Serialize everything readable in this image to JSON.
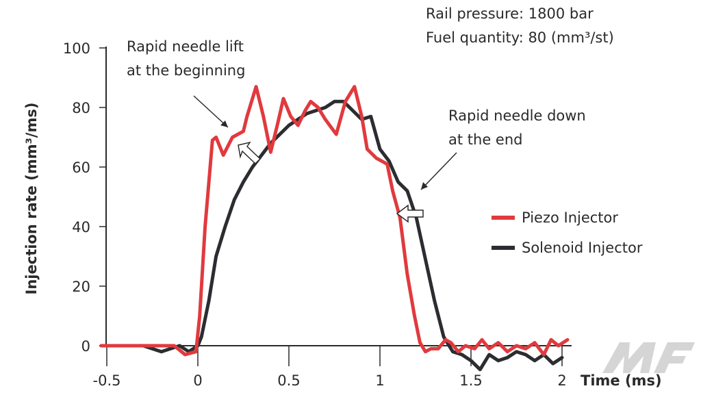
{
  "chart_data": {
    "type": "line",
    "title": "",
    "info_lines": [
      "Rail pressure: 1800 bar",
      "Fuel quantity: 80 (mm³/st)"
    ],
    "xlabel": "Time (ms)",
    "ylabel": "Injection rate (mm³/ms)",
    "xlim": [
      -0.55,
      2.05
    ],
    "ylim": [
      0,
      100
    ],
    "xticks": [
      -0.5,
      0,
      0.5,
      1,
      1.5,
      2
    ],
    "xtick_labels": [
      "-0.5",
      "0",
      "0.5",
      "1",
      "1.5",
      "2"
    ],
    "yticks": [
      0,
      20,
      40,
      60,
      80,
      100
    ],
    "ytick_labels": [
      "0",
      "20",
      "40",
      "60",
      "80",
      "100"
    ],
    "grid": false,
    "legend": {
      "placement": "right",
      "entries": [
        "Piezo Injector",
        "Solenoid Injector"
      ]
    },
    "annotations": {
      "start": [
        "Rapid needle lift",
        "at the beginning"
      ],
      "end": [
        "Rapid needle down",
        "at the end"
      ]
    },
    "series": [
      {
        "name": "Piezo Injector",
        "color": "#e03a3e",
        "x": [
          -0.53,
          -0.2,
          -0.13,
          -0.07,
          -0.01,
          0.01,
          0.04,
          0.08,
          0.1,
          0.14,
          0.19,
          0.25,
          0.27,
          0.32,
          0.36,
          0.4,
          0.44,
          0.47,
          0.51,
          0.55,
          0.59,
          0.62,
          0.66,
          0.7,
          0.76,
          0.81,
          0.86,
          0.9,
          0.93,
          0.98,
          1.04,
          1.07,
          1.11,
          1.15,
          1.19,
          1.22,
          1.25,
          1.28,
          1.32,
          1.36,
          1.39,
          1.43,
          1.47,
          1.52,
          1.56,
          1.6,
          1.65,
          1.7,
          1.75,
          1.8,
          1.85,
          1.9,
          1.94,
          1.98,
          2.03
        ],
        "y": [
          0,
          0,
          0,
          -3,
          -2,
          10,
          40,
          69,
          70,
          64,
          70,
          72,
          77,
          87,
          77,
          65,
          75,
          83,
          77,
          74,
          79,
          82,
          80,
          76,
          71,
          82,
          87,
          77,
          66,
          63,
          61,
          52,
          43,
          24,
          10,
          1,
          -2,
          -1,
          -1,
          2,
          1,
          -2,
          0,
          -1,
          2,
          -1,
          1,
          -2,
          0,
          -1,
          1,
          -3,
          2,
          0,
          2
        ]
      },
      {
        "name": "Solenoid Injector",
        "color": "#2b2d30",
        "x": [
          -0.53,
          -0.3,
          -0.2,
          -0.1,
          -0.05,
          0,
          0.02,
          0.06,
          0.1,
          0.15,
          0.2,
          0.25,
          0.3,
          0.35,
          0.4,
          0.45,
          0.5,
          0.55,
          0.6,
          0.65,
          0.7,
          0.75,
          0.8,
          0.85,
          0.9,
          0.95,
          1.0,
          1.05,
          1.1,
          1.15,
          1.2,
          1.25,
          1.3,
          1.35,
          1.4,
          1.45,
          1.5,
          1.55,
          1.6,
          1.65,
          1.7,
          1.75,
          1.8,
          1.85,
          1.9,
          1.95,
          2.0
        ],
        "y": [
          0,
          0,
          -2,
          0,
          -2,
          0,
          3,
          15,
          30,
          40,
          49,
          55,
          60,
          64,
          68,
          71,
          74,
          76,
          78,
          79,
          80,
          82,
          82,
          79,
          76,
          77,
          66,
          62,
          55,
          52,
          43,
          29,
          15,
          3,
          -2,
          -3,
          -5,
          -8,
          -3,
          -5,
          -4,
          -2,
          -3,
          -5,
          -3,
          -6,
          -4
        ]
      }
    ]
  },
  "watermark": "MF motor-fan.jp"
}
